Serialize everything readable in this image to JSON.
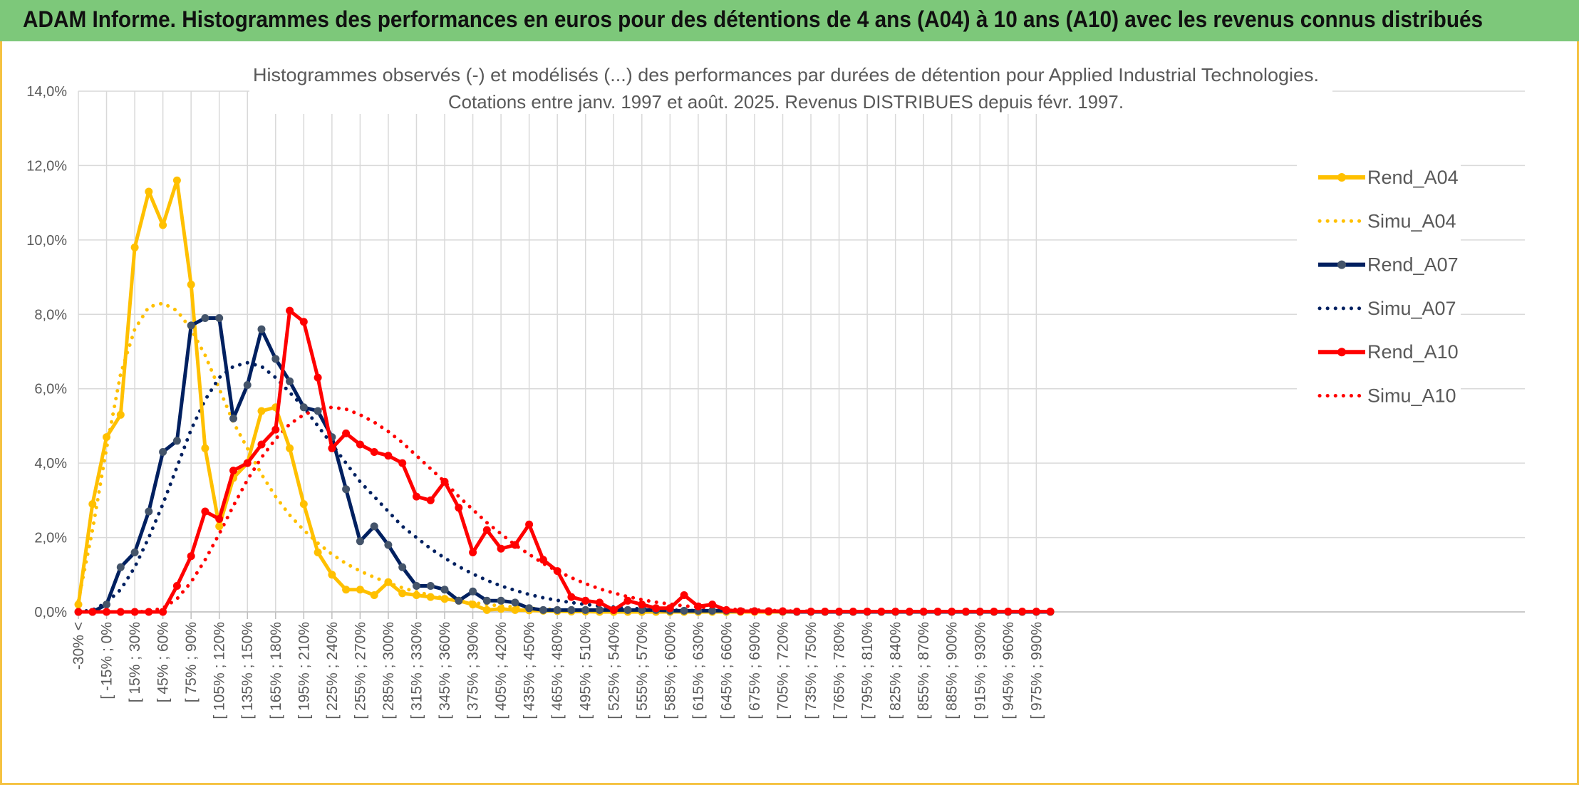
{
  "header": {
    "title": "ADAM Informe. Histogrammes des performances en euros pour des détentions de 4 ans (A04) à 10 ans (A10) avec les revenus connus distribués"
  },
  "colors": {
    "header_bg": "#7dc87a",
    "frame": "#f5c242",
    "A04": "#ffc000",
    "A07": "#002060",
    "A10": "#ff0000",
    "marker07": "#44546a"
  },
  "chart_data": {
    "type": "line",
    "title": "Histogrammes observés (-) et modélisés (...) des performances par durées de détention pour Applied Industrial Technologies.",
    "subtitle": "Cotations entre janv. 1997 et août. 2025. Revenus DISTRIBUES depuis févr. 1997.",
    "ylim": [
      0,
      14
    ],
    "yticks": [
      "0,0%",
      "2,0%",
      "4,0%",
      "6,0%",
      "8,0%",
      "10,0%",
      "12,0%",
      "14,0%"
    ],
    "grid": true,
    "legend_position": "right",
    "x_labels": [
      "-30% <",
      "[ -15% ; 0%",
      "[ 15% ; 30%",
      "[ 45% ; 60%",
      "[ 75% ; 90%",
      "[ 105% ; 120%",
      "[ 135% ; 150%",
      "[ 165% ; 180%",
      "[ 195% ; 210%",
      "[ 225% ; 240%",
      "[ 255% ; 270%",
      "[ 285% ; 300%",
      "[ 315% ; 330%",
      "[ 345% ; 360%",
      "[ 375% ; 390%",
      "[ 405% ; 420%",
      "[ 435% ; 450%",
      "[ 465% ; 480%",
      "[ 495% ; 510%",
      "[ 525% ; 540%",
      "[ 555% ; 570%",
      "[ 585% ; 600%",
      "[ 615% ; 630%",
      "[ 645% ; 660%",
      "[ 675% ; 690%",
      "[ 705% ; 720%",
      "[ 735% ; 750%",
      "[ 765% ; 780%",
      "[ 795% ; 810%",
      "[ 825% ; 840%",
      "[ 855% ; 870%",
      "[ 885% ; 900%",
      "[ 915% ; 930%",
      "[ 945% ; 960%",
      "[ 975% ; 990%"
    ],
    "series": [
      {
        "name": "Rend_A04",
        "style": "solid",
        "color": "#ffc000",
        "marker": "#ffc000",
        "values": [
          0.2,
          2.9,
          4.7,
          5.3,
          9.8,
          11.3,
          10.4,
          11.6,
          8.8,
          4.4,
          2.3,
          3.6,
          4.0,
          5.4,
          5.5,
          4.4,
          2.9,
          1.6,
          1.0,
          0.6,
          0.6,
          0.45,
          0.8,
          0.5,
          0.45,
          0.4,
          0.35,
          0.3,
          0.2,
          0.05,
          0.08,
          0.05,
          0.04,
          0.03,
          0.02,
          0.01,
          0.01,
          0,
          0,
          0,
          0,
          0,
          0,
          0,
          0,
          0,
          0,
          0,
          0,
          0,
          0,
          0,
          0,
          0,
          0,
          0,
          0,
          0,
          0,
          0,
          0,
          0,
          0,
          0,
          0,
          0,
          0,
          0,
          0,
          0
        ]
      },
      {
        "name": "Simu_A04",
        "style": "dotted",
        "color": "#ffc000",
        "values": [
          0.3,
          2.2,
          4.4,
          6.4,
          7.6,
          8.2,
          8.3,
          8.1,
          7.6,
          6.9,
          6.0,
          5.1,
          4.4,
          3.7,
          3.1,
          2.6,
          2.2,
          1.85,
          1.55,
          1.3,
          1.1,
          0.93,
          0.78,
          0.65,
          0.54,
          0.45,
          0.37,
          0.3,
          0.25,
          0.2,
          0.16,
          0.13,
          0.1,
          0.08,
          0.06,
          0.05,
          0.04,
          0.03,
          0.02,
          0.02,
          0.01,
          0.01,
          0.01,
          0.01,
          0,
          0,
          0,
          0,
          0,
          0,
          0,
          0,
          0,
          0,
          0,
          0,
          0,
          0,
          0,
          0,
          0,
          0,
          0,
          0,
          0,
          0,
          0,
          0,
          0,
          0
        ]
      },
      {
        "name": "Rend_A07",
        "style": "solid",
        "color": "#002060",
        "marker": "#44546a",
        "values": [
          0,
          0,
          0.2,
          1.2,
          1.6,
          2.7,
          4.3,
          4.6,
          7.7,
          7.9,
          7.9,
          5.2,
          6.1,
          7.6,
          6.8,
          6.2,
          5.5,
          5.4,
          4.7,
          3.3,
          1.9,
          2.3,
          1.8,
          1.2,
          0.7,
          0.7,
          0.6,
          0.3,
          0.55,
          0.3,
          0.3,
          0.25,
          0.1,
          0.05,
          0.05,
          0.05,
          0.05,
          0.05,
          0.05,
          0.05,
          0.05,
          0.05,
          0.03,
          0.03,
          0.03,
          0.03,
          0.03,
          0.02,
          0.02,
          0.02,
          0.01,
          0,
          0,
          0,
          0,
          0,
          0,
          0,
          0,
          0,
          0,
          0,
          0,
          0,
          0,
          0,
          0,
          0,
          0,
          0
        ]
      },
      {
        "name": "Simu_A07",
        "style": "dotted",
        "color": "#002060",
        "values": [
          0,
          0.05,
          0.25,
          0.6,
          1.2,
          2.0,
          2.9,
          3.9,
          4.9,
          5.7,
          6.3,
          6.6,
          6.7,
          6.6,
          6.3,
          5.9,
          5.5,
          5.0,
          4.5,
          4.0,
          3.5,
          3.1,
          2.7,
          2.3,
          2.0,
          1.7,
          1.45,
          1.22,
          1.02,
          0.85,
          0.7,
          0.58,
          0.47,
          0.38,
          0.31,
          0.25,
          0.2,
          0.16,
          0.13,
          0.1,
          0.08,
          0.06,
          0.05,
          0.04,
          0.03,
          0.02,
          0.02,
          0.01,
          0.01,
          0.01,
          0,
          0,
          0,
          0,
          0,
          0,
          0,
          0,
          0,
          0,
          0,
          0,
          0,
          0,
          0,
          0,
          0,
          0,
          0,
          0
        ]
      },
      {
        "name": "Rend_A10",
        "style": "solid",
        "color": "#ff0000",
        "marker": "#ff0000",
        "values": [
          0,
          0,
          0,
          0,
          0,
          0,
          0,
          0.7,
          1.5,
          2.7,
          2.5,
          3.8,
          4.0,
          4.5,
          4.9,
          8.1,
          7.8,
          6.3,
          4.4,
          4.8,
          4.5,
          4.3,
          4.2,
          4.0,
          3.1,
          3.0,
          3.5,
          2.8,
          1.6,
          2.2,
          1.7,
          1.8,
          2.35,
          1.4,
          1.1,
          0.4,
          0.3,
          0.25,
          0.05,
          0.3,
          0.2,
          0.1,
          0.1,
          0.45,
          0.15,
          0.2,
          0.05,
          0.02,
          0.02,
          0.02,
          0.02,
          0.01,
          0.01,
          0.01,
          0.01,
          0.01,
          0.01,
          0.01,
          0.01,
          0.01,
          0.01,
          0.01,
          0.01,
          0.01,
          0.01,
          0.01,
          0.01,
          0.01,
          0.01,
          0.01
        ]
      },
      {
        "name": "Simu_A10",
        "style": "dotted",
        "color": "#ff0000",
        "values": [
          0,
          0,
          0,
          0,
          0,
          0.02,
          0.1,
          0.35,
          0.8,
          1.4,
          2.1,
          2.85,
          3.55,
          4.15,
          4.65,
          5.05,
          5.3,
          5.45,
          5.5,
          5.45,
          5.3,
          5.1,
          4.85,
          4.55,
          4.2,
          3.85,
          3.5,
          3.1,
          2.75,
          2.4,
          2.1,
          1.8,
          1.55,
          1.3,
          1.1,
          0.92,
          0.76,
          0.62,
          0.51,
          0.41,
          0.33,
          0.26,
          0.21,
          0.16,
          0.13,
          0.1,
          0.08,
          0.06,
          0.05,
          0.04,
          0.03,
          0.02,
          0.02,
          0.01,
          0.01,
          0.01,
          0,
          0,
          0,
          0,
          0,
          0,
          0,
          0,
          0,
          0,
          0,
          0,
          0,
          0
        ]
      }
    ]
  }
}
